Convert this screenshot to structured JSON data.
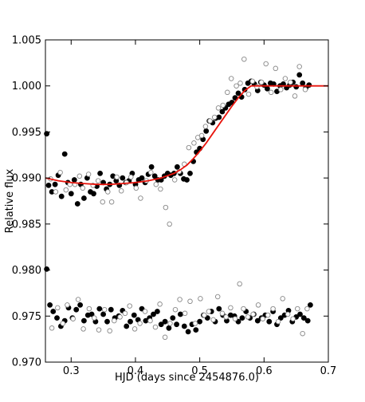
{
  "chart_data": {
    "type": "scatter",
    "title": "",
    "xlabel": "HJD (days since 2454876.0)",
    "ylabel": "Relative flux",
    "xlim": [
      0.26,
      0.7
    ],
    "ylim": [
      0.97,
      1.005
    ],
    "xticks": [
      0.3,
      0.4,
      0.5,
      0.6,
      0.7
    ],
    "xtick_labels": [
      "0.3",
      "0.4",
      "0.5",
      "0.6",
      "0.7"
    ],
    "yticks": [
      0.97,
      0.975,
      0.98,
      0.985,
      0.99,
      0.995,
      1.0,
      1.005
    ],
    "ytick_labels": [
      "0.970",
      "0.975",
      "0.980",
      "0.985",
      "0.990",
      "0.995",
      "1.000",
      "1.005"
    ],
    "grid": false,
    "legend": "none",
    "colors": {
      "filled": "#000000",
      "open": "#888888",
      "model": "#e8140c"
    },
    "series": [
      {
        "marker": "filled-circle",
        "x": [
          0.262,
          0.265,
          0.27,
          0.275,
          0.28,
          0.285,
          0.29,
          0.295,
          0.3,
          0.305,
          0.31,
          0.315,
          0.32,
          0.325,
          0.33,
          0.335,
          0.34,
          0.345,
          0.35,
          0.355,
          0.36,
          0.365,
          0.37,
          0.375,
          0.38,
          0.385,
          0.39,
          0.395,
          0.4,
          0.405,
          0.41,
          0.415,
          0.42,
          0.425,
          0.43,
          0.435,
          0.44,
          0.445,
          0.45,
          0.455,
          0.46,
          0.465,
          0.47,
          0.475,
          0.48,
          0.485,
          0.49,
          0.495,
          0.5,
          0.505,
          0.51,
          0.515,
          0.52,
          0.525,
          0.53,
          0.535,
          0.54,
          0.545,
          0.55,
          0.555,
          0.56,
          0.565,
          0.57,
          0.575,
          0.58,
          0.585,
          0.59,
          0.595,
          0.6,
          0.605,
          0.61,
          0.615,
          0.62,
          0.625,
          0.63,
          0.635,
          0.64,
          0.645,
          0.65,
          0.655,
          0.66,
          0.665,
          0.67,
          0.262,
          0.267,
          0.272,
          0.278,
          0.284,
          0.29,
          0.296,
          0.302,
          0.308,
          0.314,
          0.32,
          0.326,
          0.332,
          0.338,
          0.344,
          0.35,
          0.356,
          0.362,
          0.368,
          0.374,
          0.38,
          0.386,
          0.392,
          0.398,
          0.404,
          0.41,
          0.416,
          0.422,
          0.428,
          0.434,
          0.44,
          0.446,
          0.452,
          0.458,
          0.464,
          0.47,
          0.476,
          0.482,
          0.488,
          0.494,
          0.5,
          0.506,
          0.512,
          0.518,
          0.524,
          0.53,
          0.536,
          0.542,
          0.548,
          0.554,
          0.56,
          0.566,
          0.572,
          0.578,
          0.584,
          0.59,
          0.596,
          0.602,
          0.608,
          0.614,
          0.62,
          0.626,
          0.632,
          0.638,
          0.644,
          0.65,
          0.656,
          0.662,
          0.668,
          0.672
        ],
        "y": [
          0.9948,
          0.9892,
          0.9885,
          0.9893,
          0.9903,
          0.988,
          0.9926,
          0.9895,
          0.9883,
          0.9898,
          0.9872,
          0.9893,
          0.9878,
          0.99,
          0.9885,
          0.9883,
          0.9891,
          0.9905,
          0.9895,
          0.9888,
          0.9893,
          0.9902,
          0.9897,
          0.9892,
          0.99,
          0.9895,
          0.9897,
          0.9905,
          0.9893,
          0.9898,
          0.99,
          0.9895,
          0.9904,
          0.9912,
          0.9902,
          0.9898,
          0.9898,
          0.9902,
          0.9905,
          0.9903,
          0.9905,
          0.9912,
          0.9905,
          0.9899,
          0.9898,
          0.9905,
          0.9918,
          0.9928,
          0.9932,
          0.9942,
          0.9951,
          0.9962,
          0.996,
          0.9965,
          0.9966,
          0.9972,
          0.9976,
          0.998,
          0.9982,
          0.9987,
          0.9992,
          0.9988,
          0.9996,
          1.0003,
          1.0005,
          1.0002,
          0.9995,
          1.0004,
          1.0001,
          0.9997,
          1.0003,
          1.0002,
          0.9994,
          1.0,
          1.0002,
          0.9998,
          1.0001,
          1.0004,
          0.9999,
          1.0012,
          1.0003,
          0.9998,
          1.0001,
          0.9801,
          0.9762,
          0.9755,
          0.9748,
          0.9739,
          0.9745,
          0.9759,
          0.9748,
          0.9757,
          0.9762,
          0.9745,
          0.9751,
          0.9752,
          0.9744,
          0.9758,
          0.9752,
          0.9744,
          0.9757,
          0.9748,
          0.975,
          0.9756,
          0.9739,
          0.9744,
          0.9751,
          0.9746,
          0.9758,
          0.9745,
          0.9748,
          0.9752,
          0.9755,
          0.9741,
          0.9744,
          0.9737,
          0.9748,
          0.9741,
          0.9752,
          0.9739,
          0.9733,
          0.9741,
          0.9735,
          0.9744,
          0.9751,
          0.9748,
          0.9755,
          0.9744,
          0.9758,
          0.9751,
          0.9745,
          0.9751,
          0.975,
          0.9744,
          0.9748,
          0.9755,
          0.9748,
          0.9752,
          0.9745,
          0.9748,
          0.9751,
          0.9744,
          0.9755,
          0.9741,
          0.9748,
          0.9751,
          0.9756,
          0.9744,
          0.9749,
          0.9752,
          0.9748,
          0.9745,
          0.9762
        ]
      },
      {
        "marker": "open-circle",
        "x": [
          0.268,
          0.276,
          0.283,
          0.292,
          0.298,
          0.306,
          0.313,
          0.318,
          0.327,
          0.334,
          0.342,
          0.349,
          0.357,
          0.363,
          0.371,
          0.378,
          0.386,
          0.393,
          0.401,
          0.408,
          0.417,
          0.424,
          0.432,
          0.439,
          0.447,
          0.453,
          0.461,
          0.468,
          0.476,
          0.483,
          0.491,
          0.497,
          0.503,
          0.509,
          0.516,
          0.523,
          0.529,
          0.536,
          0.543,
          0.549,
          0.557,
          0.563,
          0.569,
          0.576,
          0.582,
          0.589,
          0.596,
          0.603,
          0.611,
          0.618,
          0.626,
          0.633,
          0.641,
          0.648,
          0.655,
          0.664,
          0.27,
          0.279,
          0.287,
          0.294,
          0.303,
          0.311,
          0.319,
          0.328,
          0.336,
          0.343,
          0.352,
          0.36,
          0.367,
          0.376,
          0.384,
          0.391,
          0.399,
          0.407,
          0.415,
          0.423,
          0.431,
          0.438,
          0.446,
          0.454,
          0.462,
          0.469,
          0.477,
          0.485,
          0.493,
          0.501,
          0.507,
          0.514,
          0.521,
          0.528,
          0.535,
          0.541,
          0.548,
          0.555,
          0.562,
          0.568,
          0.575,
          0.583,
          0.591,
          0.598,
          0.606,
          0.614,
          0.622,
          0.629,
          0.637,
          0.645,
          0.652,
          0.66,
          0.667
        ],
        "y": [
          0.9899,
          0.9885,
          0.9906,
          0.9887,
          0.9893,
          0.9893,
          0.9902,
          0.9889,
          0.9904,
          0.9892,
          0.9897,
          0.9874,
          0.9885,
          0.9874,
          0.9901,
          0.9886,
          0.9895,
          0.9901,
          0.9889,
          0.9878,
          0.9897,
          0.9906,
          0.9893,
          0.9888,
          0.9868,
          0.985,
          0.9898,
          0.9907,
          0.9915,
          0.9933,
          0.9938,
          0.9944,
          0.9946,
          0.9956,
          0.9962,
          0.9966,
          0.9976,
          0.9979,
          0.9993,
          1.0008,
          1.0,
          1.0003,
          1.0029,
          0.9991,
          1.0005,
          0.9999,
          1.0004,
          1.0024,
          0.9993,
          1.0019,
          0.9996,
          1.0008,
          1.0004,
          0.9989,
          1.0021,
          0.9996,
          0.9737,
          0.9759,
          0.9742,
          0.9762,
          0.9747,
          0.9768,
          0.9736,
          0.9758,
          0.9748,
          0.9735,
          0.9757,
          0.9734,
          0.9745,
          0.9749,
          0.9753,
          0.9761,
          0.9736,
          0.9742,
          0.9755,
          0.9745,
          0.9738,
          0.9763,
          0.9727,
          0.9742,
          0.9757,
          0.9768,
          0.9753,
          0.9766,
          0.9742,
          0.9769,
          0.9751,
          0.9755,
          0.9746,
          0.9771,
          0.9753,
          0.9749,
          0.9759,
          0.9747,
          0.9785,
          0.9758,
          0.9749,
          0.9752,
          0.9762,
          0.9747,
          0.9751,
          0.9758,
          0.9744,
          0.9769,
          0.9752,
          0.9747,
          0.9758,
          0.9731,
          0.9758
        ]
      }
    ],
    "model_curve": {
      "style": "line",
      "x": [
        0.26,
        0.28,
        0.3,
        0.32,
        0.34,
        0.36,
        0.38,
        0.4,
        0.42,
        0.44,
        0.46,
        0.47,
        0.48,
        0.49,
        0.5,
        0.51,
        0.52,
        0.53,
        0.54,
        0.55,
        0.56,
        0.57,
        0.58,
        0.6,
        0.62,
        0.64,
        0.66,
        0.68,
        0.7
      ],
      "y": [
        0.99,
        0.9897,
        0.9895,
        0.9894,
        0.9893,
        0.9893,
        0.9894,
        0.9895,
        0.9897,
        0.99,
        0.9905,
        0.9909,
        0.9914,
        0.9921,
        0.9929,
        0.9938,
        0.9948,
        0.9958,
        0.9968,
        0.9978,
        0.9987,
        0.9995,
        1.0,
        1.0,
        1.0,
        1.0,
        1.0,
        1.0,
        1.0
      ]
    }
  }
}
